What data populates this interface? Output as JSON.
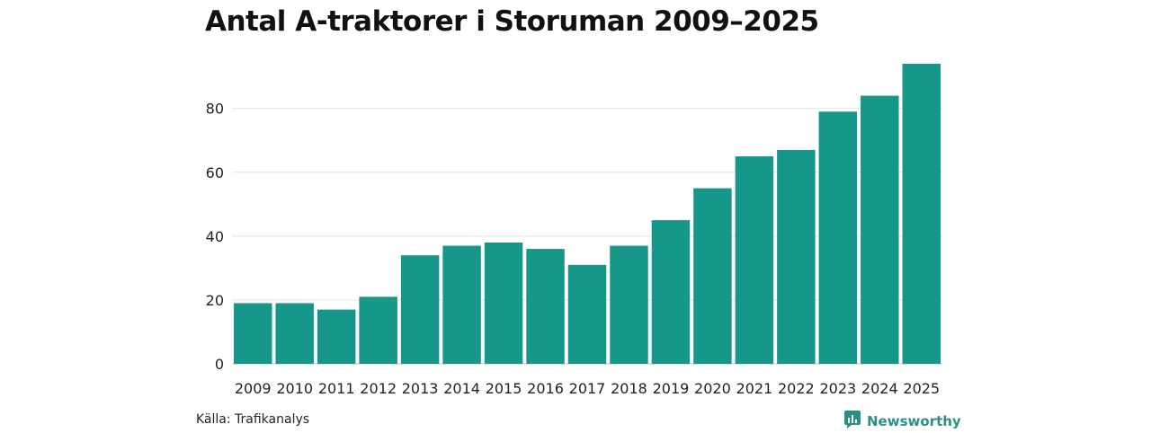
{
  "title": "Antal A-traktorer i Storuman 2009–2025",
  "source": "Källa: Trafikanalys",
  "brand": {
    "name": "Newsworthy",
    "icon": "newsworthy-logo-icon",
    "color": "#2b8f86"
  },
  "colors": {
    "bar": "#15988a",
    "grid": "#e3e3e3",
    "axis": "#c8c8c8"
  },
  "chart_data": {
    "type": "bar",
    "title": "Antal A-traktorer i Storuman 2009–2025",
    "xlabel": "",
    "ylabel": "",
    "categories": [
      "2009",
      "2010",
      "2011",
      "2012",
      "2013",
      "2014",
      "2015",
      "2016",
      "2017",
      "2018",
      "2019",
      "2020",
      "2021",
      "2022",
      "2023",
      "2024",
      "2025"
    ],
    "values": [
      19,
      19,
      17,
      21,
      34,
      37,
      38,
      36,
      31,
      37,
      45,
      55,
      65,
      67,
      79,
      84,
      94
    ],
    "yticks": [
      0,
      20,
      40,
      60,
      80
    ],
    "ylim": [
      0,
      94
    ],
    "grid": true,
    "legend": "none"
  }
}
